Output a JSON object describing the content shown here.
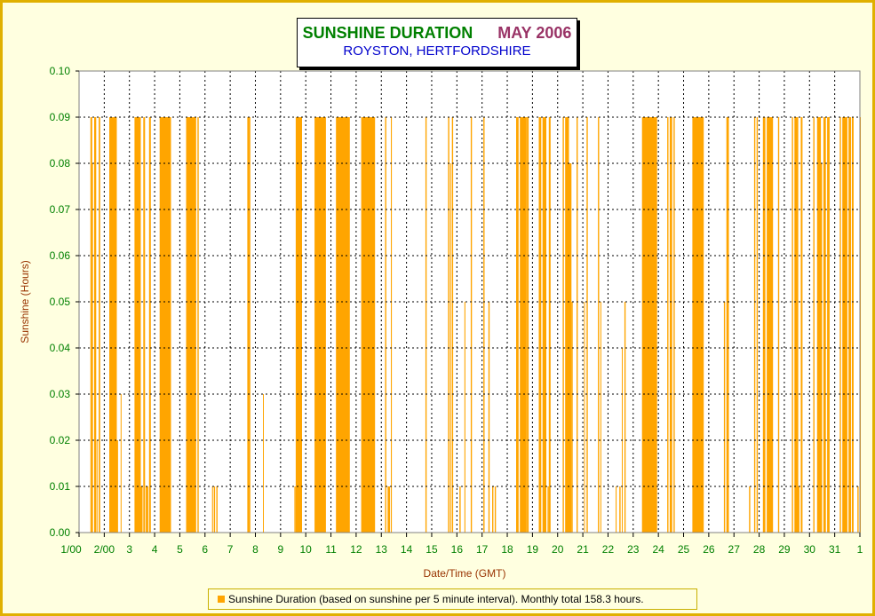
{
  "title": "SUNSHINE DURATION",
  "title_month": "MAY 2006",
  "subtitle": "ROYSTON, HERTFORDSHIRE",
  "legend": "Sunshine Duration (based on sunshine per 5 minute interval). Monthly total 158.3 hours.",
  "colors": {
    "series": "#ffa500",
    "title": "#008000",
    "month": "#993366",
    "subtitle": "#0000cc",
    "axis_text": "#008000",
    "axis_title": "#993300"
  },
  "chart_data": {
    "type": "bar",
    "title": "SUNSHINE DURATION   MAY 2006",
    "subtitle": "ROYSTON, HERTFORDSHIRE",
    "xlabel": "Date/Time (GMT)",
    "ylabel": "Sunshine (Hours)",
    "ylim": [
      0,
      0.1
    ],
    "yticks": [
      "0.00",
      "0.01",
      "0.02",
      "0.03",
      "0.04",
      "0.05",
      "0.06",
      "0.07",
      "0.08",
      "0.09",
      "0.10"
    ],
    "xticks": [
      "1/00",
      "2/00",
      "3",
      "4",
      "5",
      "6",
      "7",
      "8",
      "9",
      "10",
      "11",
      "12",
      "13",
      "14",
      "15",
      "16",
      "17",
      "18",
      "19",
      "20",
      "21",
      "22",
      "23",
      "24",
      "25",
      "26",
      "27",
      "28",
      "29",
      "30",
      "31",
      "1"
    ],
    "xlim": [
      1,
      32
    ],
    "grid": true,
    "legend_position": "bottom",
    "series": [
      {
        "name": "Sunshine Duration (based on sunshine per 5 minute interval). Monthly total 158.3 hours.",
        "bands": [
          [
            1.45,
            1.52,
            0.09
          ],
          [
            1.52,
            1.55,
            0.08
          ],
          [
            1.6,
            1.68,
            0.09
          ],
          [
            1.7,
            1.73,
            0.02
          ],
          [
            1.78,
            1.84,
            0.09
          ],
          [
            2.2,
            2.5,
            0.09
          ],
          [
            2.5,
            2.55,
            0.02
          ],
          [
            2.65,
            2.68,
            0.03
          ],
          [
            3.2,
            3.45,
            0.09
          ],
          [
            3.45,
            3.52,
            0.01
          ],
          [
            3.55,
            3.62,
            0.09
          ],
          [
            3.65,
            3.75,
            0.01
          ],
          [
            3.78,
            3.85,
            0.09
          ],
          [
            4.2,
            4.65,
            0.09
          ],
          [
            5.25,
            5.65,
            0.09
          ],
          [
            5.7,
            5.75,
            0.09
          ],
          [
            6.28,
            6.32,
            0.01
          ],
          [
            6.35,
            6.4,
            0.01
          ],
          [
            6.45,
            6.5,
            0.01
          ],
          [
            7.68,
            7.75,
            0.09
          ],
          [
            7.75,
            7.8,
            0.09
          ],
          [
            8.3,
            8.33,
            0.03
          ],
          [
            9.6,
            9.85,
            0.09
          ],
          [
            9.55,
            9.6,
            0.01
          ],
          [
            10.35,
            10.8,
            0.09
          ],
          [
            11.2,
            11.75,
            0.09
          ],
          [
            12.2,
            12.75,
            0.09
          ],
          [
            13.15,
            13.2,
            0.09
          ],
          [
            13.25,
            13.35,
            0.01
          ],
          [
            13.38,
            13.42,
            0.09
          ],
          [
            14.75,
            14.8,
            0.09
          ],
          [
            15.65,
            15.7,
            0.09
          ],
          [
            15.73,
            15.77,
            0.08
          ],
          [
            15.8,
            15.85,
            0.09
          ],
          [
            16.1,
            16.15,
            0.01
          ],
          [
            16.3,
            16.34,
            0.05
          ],
          [
            16.55,
            16.6,
            0.09
          ],
          [
            17.05,
            17.1,
            0.09
          ],
          [
            17.25,
            17.3,
            0.05
          ],
          [
            17.4,
            17.45,
            0.01
          ],
          [
            17.5,
            17.55,
            0.01
          ],
          [
            18.35,
            18.45,
            0.09
          ],
          [
            18.5,
            18.75,
            0.09
          ],
          [
            18.75,
            18.8,
            0.09
          ],
          [
            18.8,
            18.85,
            0.09
          ],
          [
            19.25,
            19.35,
            0.09
          ],
          [
            19.4,
            19.55,
            0.09
          ],
          [
            19.6,
            19.65,
            0.01
          ],
          [
            19.65,
            19.72,
            0.09
          ],
          [
            20.2,
            20.25,
            0.09
          ],
          [
            20.3,
            20.45,
            0.09
          ],
          [
            20.45,
            20.55,
            0.08
          ],
          [
            20.55,
            20.6,
            0.05
          ],
          [
            20.75,
            20.8,
            0.09
          ],
          [
            21.05,
            21.08,
            0.05
          ],
          [
            21.15,
            21.2,
            0.09
          ],
          [
            21.6,
            21.65,
            0.09
          ],
          [
            21.7,
            21.73,
            0.05
          ],
          [
            22.3,
            22.34,
            0.01
          ],
          [
            22.45,
            22.5,
            0.01
          ],
          [
            22.55,
            22.58,
            0.04
          ],
          [
            22.65,
            22.7,
            0.05
          ],
          [
            23.35,
            23.95,
            0.09
          ],
          [
            24.35,
            24.4,
            0.09
          ],
          [
            24.45,
            24.55,
            0.09
          ],
          [
            24.6,
            24.65,
            0.09
          ],
          [
            25.35,
            25.8,
            0.09
          ],
          [
            26.6,
            26.65,
            0.05
          ],
          [
            26.7,
            26.8,
            0.09
          ],
          [
            27.6,
            27.65,
            0.01
          ],
          [
            27.8,
            27.85,
            0.09
          ],
          [
            27.9,
            27.95,
            0.09
          ],
          [
            28.15,
            28.25,
            0.09
          ],
          [
            28.3,
            28.55,
            0.09
          ],
          [
            28.75,
            28.8,
            0.09
          ],
          [
            29.3,
            29.35,
            0.09
          ],
          [
            29.4,
            29.55,
            0.09
          ],
          [
            29.55,
            29.6,
            0.01
          ],
          [
            29.65,
            29.72,
            0.09
          ],
          [
            30.15,
            30.2,
            0.09
          ],
          [
            30.3,
            30.45,
            0.09
          ],
          [
            30.45,
            30.5,
            0.08
          ],
          [
            30.55,
            30.65,
            0.09
          ],
          [
            30.7,
            30.8,
            0.09
          ],
          [
            31.2,
            31.25,
            0.09
          ],
          [
            31.3,
            31.5,
            0.09
          ],
          [
            31.55,
            31.65,
            0.09
          ],
          [
            31.68,
            31.75,
            0.09
          ],
          [
            31.9,
            31.95,
            0.01
          ],
          [
            32.0,
            32.02,
            0.09
          ]
        ]
      }
    ]
  }
}
